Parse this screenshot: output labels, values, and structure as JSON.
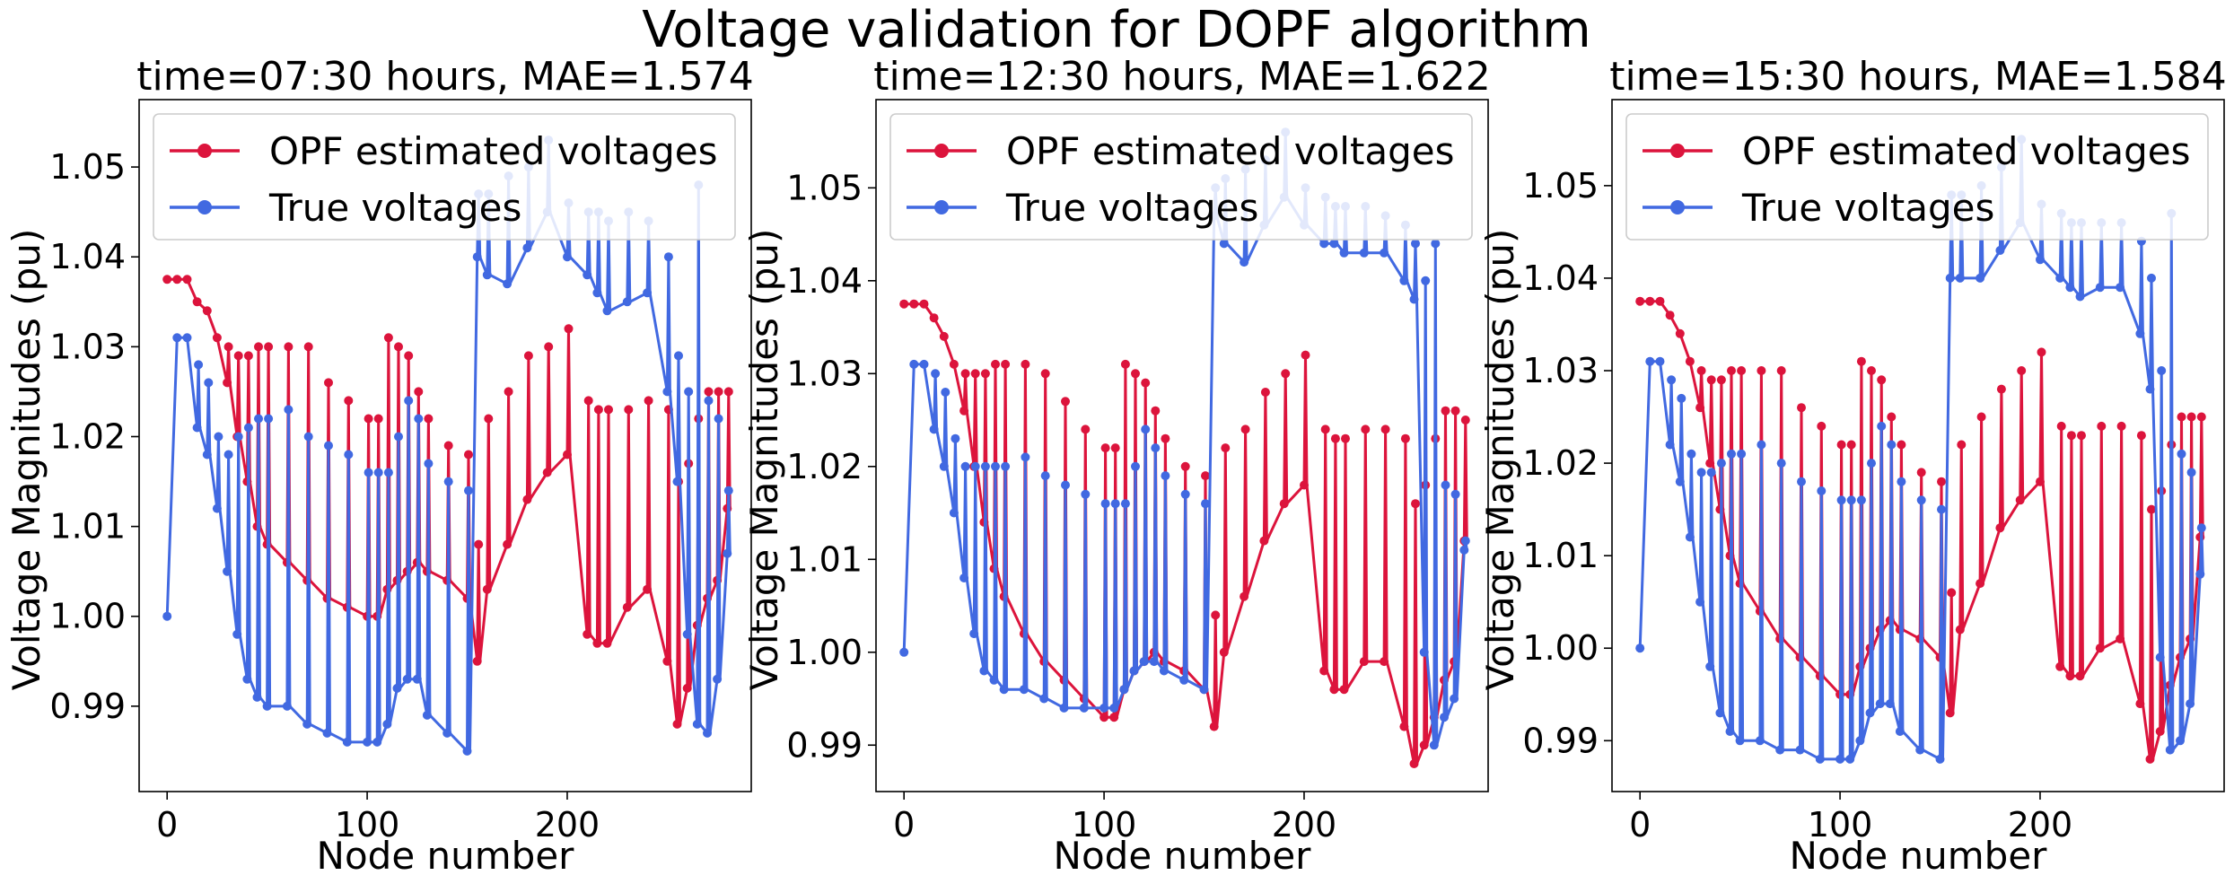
{
  "figure": {
    "suptitle": "Voltage validation for DOPF algorithm"
  },
  "colors": {
    "estimated": "#dc143c",
    "true": "#4169e1",
    "axis": "#000000",
    "legend_border": "#cccccc"
  },
  "chart_data": [
    {
      "type": "line",
      "title": "time=07:30 hours, MAE=1.574",
      "xlabel": "Node number",
      "ylabel": "Voltage Magnitudes (pu)",
      "xlim": [
        -14,
        292
      ],
      "ylim": [
        0.9805,
        1.0575
      ],
      "xticks": [
        0,
        100,
        200
      ],
      "yticks": [
        0.99,
        1.0,
        1.01,
        1.02,
        1.03,
        1.04,
        1.05
      ],
      "ytick_labels": [
        "0.99",
        "1.00",
        "1.01",
        "1.02",
        "1.03",
        "1.04",
        "1.05"
      ],
      "legend": {
        "position": "upper-left"
      },
      "grid": false,
      "series": [
        {
          "name": "OPF estimated voltages",
          "color": "#dc143c",
          "marker": "circle",
          "x": [
            0,
            5,
            10,
            15,
            20,
            25,
            30,
            35,
            40,
            45,
            50,
            60,
            70,
            80,
            90,
            100,
            105,
            110,
            115,
            120,
            125,
            130,
            140,
            150,
            155,
            160,
            170,
            180,
            190,
            200,
            210,
            215,
            220,
            230,
            240,
            250,
            255,
            260,
            265,
            270,
            275,
            280
          ],
          "values": [
            1.0375,
            1.0375,
            1.0375,
            1.035,
            1.034,
            1.031,
            1.026,
            1.02,
            1.015,
            1.01,
            1.008,
            1.006,
            1.004,
            1.002,
            1.001,
            1.0,
            1.0,
            1.003,
            1.004,
            1.005,
            1.006,
            1.005,
            1.004,
            1.002,
            0.995,
            1.003,
            1.008,
            1.013,
            1.016,
            1.018,
            0.998,
            0.997,
            0.997,
            1.001,
            1.003,
            0.995,
            0.988,
            0.992,
            0.999,
            1.002,
            1.004,
            1.012
          ],
          "upper": [
            1.0375,
            1.0375,
            1.0375,
            1.035,
            1.034,
            1.031,
            1.03,
            1.029,
            1.029,
            1.03,
            1.03,
            1.03,
            1.03,
            1.026,
            1.024,
            1.022,
            1.022,
            1.031,
            1.03,
            1.029,
            1.025,
            1.022,
            1.019,
            1.018,
            1.008,
            1.022,
            1.025,
            1.029,
            1.03,
            1.032,
            1.024,
            1.023,
            1.023,
            1.023,
            1.024,
            1.023,
            1.015,
            1.017,
            1.022,
            1.025,
            1.025,
            1.025
          ]
        },
        {
          "name": "True voltages",
          "color": "#4169e1",
          "marker": "circle",
          "x": [
            0,
            5,
            10,
            15,
            20,
            25,
            30,
            35,
            40,
            45,
            50,
            60,
            70,
            80,
            90,
            100,
            105,
            110,
            115,
            120,
            125,
            130,
            140,
            150,
            155,
            160,
            170,
            180,
            190,
            200,
            210,
            215,
            220,
            230,
            240,
            250,
            255,
            260,
            265,
            270,
            275,
            280
          ],
          "values": [
            1.0,
            1.031,
            1.031,
            1.021,
            1.018,
            1.012,
            1.005,
            0.998,
            0.993,
            0.991,
            0.99,
            0.99,
            0.988,
            0.987,
            0.986,
            0.986,
            0.986,
            0.988,
            0.992,
            0.993,
            0.993,
            0.989,
            0.987,
            0.985,
            1.04,
            1.038,
            1.037,
            1.041,
            1.045,
            1.04,
            1.038,
            1.036,
            1.034,
            1.035,
            1.036,
            1.025,
            1.015,
            0.998,
            0.988,
            0.987,
            0.993,
            1.007
          ],
          "upper": [
            1.0,
            1.031,
            1.031,
            1.028,
            1.026,
            1.02,
            1.018,
            1.02,
            1.021,
            1.022,
            1.022,
            1.023,
            1.02,
            1.019,
            1.018,
            1.016,
            1.016,
            1.016,
            1.02,
            1.024,
            1.022,
            1.017,
            1.015,
            1.014,
            1.047,
            1.047,
            1.049,
            1.05,
            1.053,
            1.046,
            1.045,
            1.045,
            1.044,
            1.045,
            1.044,
            1.04,
            1.029,
            1.025,
            1.048,
            1.024,
            1.022,
            1.014
          ]
        }
      ]
    },
    {
      "type": "line",
      "title": "time=12:30 hours, MAE=1.622",
      "xlabel": "Node number",
      "ylabel": "Voltage Magnitudes (pu)",
      "xlim": [
        -14,
        292
      ],
      "ylim": [
        0.985,
        1.0595
      ],
      "xticks": [
        0,
        100,
        200
      ],
      "yticks": [
        0.99,
        1.0,
        1.01,
        1.02,
        1.03,
        1.04,
        1.05
      ],
      "ytick_labels": [
        "0.99",
        "1.00",
        "1.01",
        "1.02",
        "1.03",
        "1.04",
        "1.05"
      ],
      "legend": {
        "position": "upper-left"
      },
      "grid": false,
      "series": [
        {
          "name": "OPF estimated voltages",
          "color": "#dc143c",
          "marker": "circle",
          "x": [
            0,
            5,
            10,
            15,
            20,
            25,
            30,
            35,
            40,
            45,
            50,
            60,
            70,
            80,
            90,
            100,
            105,
            110,
            115,
            120,
            125,
            130,
            140,
            150,
            155,
            160,
            170,
            180,
            190,
            200,
            210,
            215,
            220,
            230,
            240,
            250,
            255,
            260,
            265,
            270,
            275,
            280
          ],
          "values": [
            1.0375,
            1.0375,
            1.0375,
            1.036,
            1.034,
            1.031,
            1.026,
            1.02,
            1.014,
            1.009,
            1.006,
            1.002,
            0.999,
            0.997,
            0.995,
            0.993,
            0.993,
            0.996,
            0.998,
            0.999,
            1.0,
            0.999,
            0.998,
            0.996,
            0.992,
            1.0,
            1.006,
            1.012,
            1.016,
            1.018,
            0.998,
            0.996,
            0.996,
            0.999,
            0.999,
            0.992,
            0.988,
            0.99,
            0.993,
            0.997,
            0.999,
            1.012
          ],
          "upper": [
            1.0375,
            1.0375,
            1.0375,
            1.036,
            1.034,
            1.031,
            1.03,
            1.03,
            1.03,
            1.031,
            1.031,
            1.031,
            1.03,
            1.027,
            1.024,
            1.022,
            1.022,
            1.031,
            1.03,
            1.029,
            1.026,
            1.023,
            1.02,
            1.019,
            1.004,
            1.022,
            1.024,
            1.028,
            1.03,
            1.032,
            1.024,
            1.023,
            1.023,
            1.024,
            1.024,
            1.023,
            1.016,
            1.018,
            1.023,
            1.026,
            1.026,
            1.025
          ]
        },
        {
          "name": "True voltages",
          "color": "#4169e1",
          "marker": "circle",
          "x": [
            0,
            5,
            10,
            15,
            20,
            25,
            30,
            35,
            40,
            45,
            50,
            60,
            70,
            80,
            90,
            100,
            105,
            110,
            115,
            120,
            125,
            130,
            140,
            150,
            155,
            160,
            170,
            180,
            190,
            200,
            210,
            215,
            220,
            230,
            240,
            250,
            255,
            260,
            265,
            270,
            275,
            280
          ],
          "values": [
            1.0,
            1.031,
            1.031,
            1.024,
            1.02,
            1.015,
            1.008,
            1.002,
            0.998,
            0.997,
            0.996,
            0.996,
            0.995,
            0.994,
            0.994,
            0.994,
            0.994,
            0.996,
            0.998,
            0.999,
            0.999,
            0.998,
            0.997,
            0.996,
            1.047,
            1.044,
            1.042,
            1.046,
            1.049,
            1.046,
            1.044,
            1.044,
            1.043,
            1.043,
            1.043,
            1.04,
            1.038,
            1.0,
            0.99,
            0.993,
            0.995,
            1.011
          ],
          "upper": [
            1.0,
            1.031,
            1.031,
            1.03,
            1.028,
            1.023,
            1.02,
            1.02,
            1.02,
            1.02,
            1.02,
            1.021,
            1.019,
            1.018,
            1.017,
            1.016,
            1.016,
            1.016,
            1.02,
            1.024,
            1.022,
            1.019,
            1.017,
            1.016,
            1.05,
            1.051,
            1.052,
            1.053,
            1.056,
            1.05,
            1.049,
            1.048,
            1.048,
            1.048,
            1.047,
            1.046,
            1.044,
            1.04,
            1.044,
            1.018,
            1.017,
            1.012
          ]
        }
      ]
    },
    {
      "type": "line",
      "title": "time=15:30 hours, MAE=1.584",
      "xlabel": "Node number",
      "ylabel": "Voltage Magnitudes (pu)",
      "xlim": [
        -14,
        292
      ],
      "ylim": [
        0.9845,
        1.0593
      ],
      "xticks": [
        0,
        100,
        200
      ],
      "yticks": [
        0.99,
        1.0,
        1.01,
        1.02,
        1.03,
        1.04,
        1.05
      ],
      "ytick_labels": [
        "0.99",
        "1.00",
        "1.01",
        "1.02",
        "1.03",
        "1.04",
        "1.05"
      ],
      "legend": {
        "position": "upper-left"
      },
      "grid": false,
      "series": [
        {
          "name": "OPF estimated voltages",
          "color": "#dc143c",
          "marker": "circle",
          "x": [
            0,
            5,
            10,
            15,
            20,
            25,
            30,
            35,
            40,
            45,
            50,
            60,
            70,
            80,
            90,
            100,
            105,
            110,
            115,
            120,
            125,
            130,
            140,
            150,
            155,
            160,
            170,
            180,
            190,
            200,
            210,
            215,
            220,
            230,
            240,
            250,
            255,
            260,
            265,
            270,
            275,
            280
          ],
          "values": [
            1.0375,
            1.0375,
            1.0375,
            1.036,
            1.034,
            1.031,
            1.026,
            1.02,
            1.015,
            1.01,
            1.007,
            1.004,
            1.001,
            0.999,
            0.997,
            0.995,
            0.995,
            0.998,
            1.0,
            1.002,
            1.003,
            1.002,
            1.001,
            0.999,
            0.993,
            1.002,
            1.007,
            1.013,
            1.016,
            1.018,
            0.998,
            0.997,
            0.997,
            1.0,
            1.001,
            0.994,
            0.988,
            0.991,
            0.996,
            0.999,
            1.001,
            1.012
          ],
          "upper": [
            1.0375,
            1.0375,
            1.0375,
            1.036,
            1.034,
            1.031,
            1.03,
            1.029,
            1.029,
            1.03,
            1.03,
            1.03,
            1.03,
            1.026,
            1.024,
            1.022,
            1.022,
            1.031,
            1.03,
            1.029,
            1.025,
            1.022,
            1.019,
            1.018,
            1.006,
            1.022,
            1.025,
            1.028,
            1.03,
            1.032,
            1.024,
            1.023,
            1.023,
            1.024,
            1.024,
            1.023,
            1.015,
            1.017,
            1.022,
            1.025,
            1.025,
            1.025
          ]
        },
        {
          "name": "True voltages",
          "color": "#4169e1",
          "marker": "circle",
          "x": [
            0,
            5,
            10,
            15,
            20,
            25,
            30,
            35,
            40,
            45,
            50,
            60,
            70,
            80,
            90,
            100,
            105,
            110,
            115,
            120,
            125,
            130,
            140,
            150,
            155,
            160,
            170,
            180,
            190,
            200,
            210,
            215,
            220,
            230,
            240,
            250,
            255,
            260,
            265,
            270,
            275,
            280
          ],
          "values": [
            1.0,
            1.031,
            1.031,
            1.022,
            1.018,
            1.012,
            1.005,
            0.998,
            0.993,
            0.991,
            0.99,
            0.99,
            0.989,
            0.989,
            0.988,
            0.988,
            0.988,
            0.99,
            0.993,
            0.994,
            0.994,
            0.991,
            0.989,
            0.988,
            1.04,
            1.04,
            1.04,
            1.043,
            1.046,
            1.042,
            1.04,
            1.039,
            1.038,
            1.039,
            1.039,
            1.034,
            1.028,
            0.999,
            0.989,
            0.99,
            0.994,
            1.008
          ],
          "upper": [
            1.0,
            1.031,
            1.031,
            1.029,
            1.027,
            1.021,
            1.019,
            1.019,
            1.02,
            1.021,
            1.021,
            1.022,
            1.02,
            1.018,
            1.017,
            1.016,
            1.016,
            1.016,
            1.02,
            1.024,
            1.022,
            1.018,
            1.016,
            1.015,
            1.049,
            1.049,
            1.05,
            1.052,
            1.055,
            1.048,
            1.047,
            1.046,
            1.046,
            1.046,
            1.046,
            1.044,
            1.04,
            1.03,
            1.047,
            1.021,
            1.019,
            1.013
          ]
        }
      ]
    }
  ]
}
